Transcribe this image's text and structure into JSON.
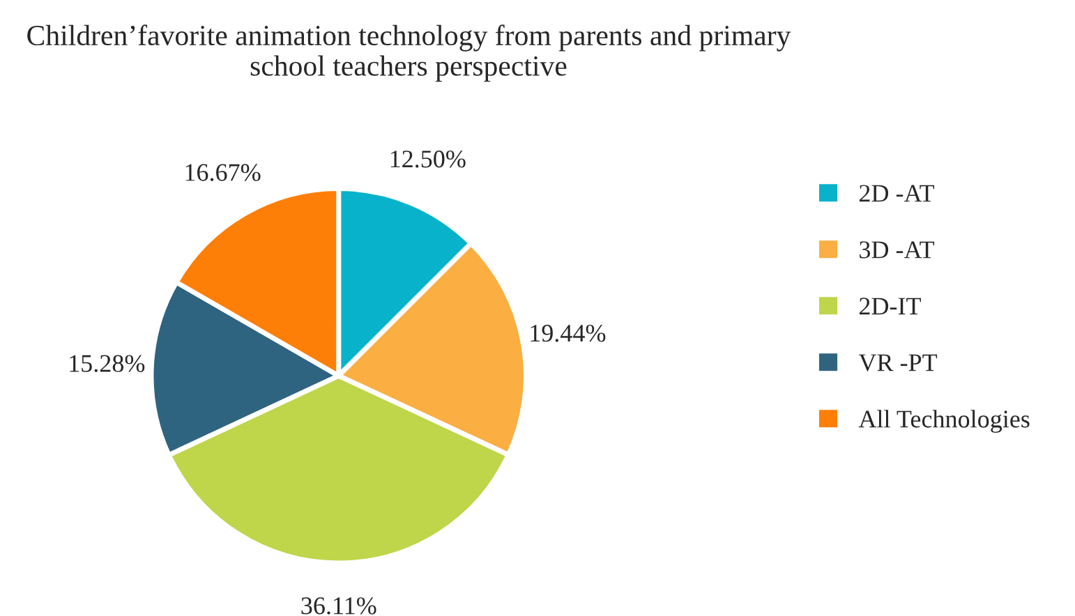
{
  "chart_data": {
    "type": "pie",
    "title": "Children’favorite animation technology from parents and primary school teachers perspective",
    "categories": [
      "2D -AT",
      "3D -AT",
      "2D-IT",
      "VR -PT",
      "All Technologies"
    ],
    "values": [
      12.5,
      19.44,
      36.11,
      15.28,
      16.67
    ],
    "colors": [
      "#08b2cb",
      "#fbae42",
      "#bfd64b",
      "#2e6480",
      "#fd7f07"
    ],
    "value_labels": [
      "12.50%",
      "19.44%",
      "36.11%",
      "15.28%",
      "16.67%"
    ],
    "legend": "right"
  }
}
